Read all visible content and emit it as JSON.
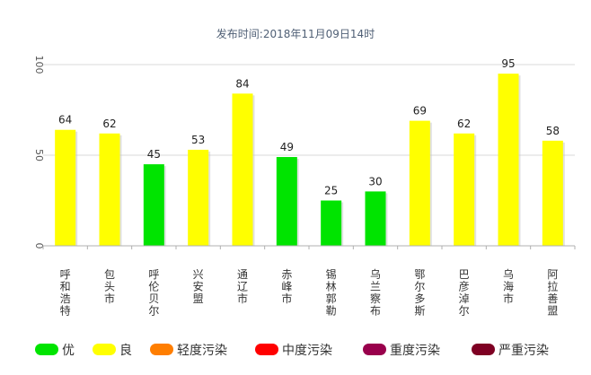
{
  "chart_data": {
    "type": "bar",
    "subtitle": "发布时间:2018年11月09日14时",
    "categories": [
      "呼和浩特市",
      "包头市",
      "呼伦贝尔市",
      "兴安盟",
      "通辽市",
      "赤峰市",
      "锡林郭勒盟",
      "乌兰察布市",
      "鄂尔多斯市",
      "巴彦淖尔市",
      "乌海市",
      "阿拉善盟"
    ],
    "values": [
      64,
      62,
      45,
      53,
      84,
      49,
      25,
      30,
      69,
      62,
      95,
      58
    ],
    "levels": [
      "良",
      "良",
      "优",
      "良",
      "良",
      "优",
      "优",
      "优",
      "良",
      "良",
      "良",
      "良"
    ],
    "ylim": [
      0,
      100
    ],
    "yticks": [
      "0",
      "50",
      "100"
    ],
    "grid": true,
    "legend_position": "bottom",
    "legend": [
      {
        "name": "优",
        "color": "#00e400"
      },
      {
        "name": "良",
        "color": "#ffff00"
      },
      {
        "name": "轻度污染",
        "color": "#ff7e00"
      },
      {
        "name": "中度污染",
        "color": "#ff0000"
      },
      {
        "name": "重度污染",
        "color": "#99004c"
      },
      {
        "name": "严重污染",
        "color": "#7e0023"
      }
    ]
  }
}
